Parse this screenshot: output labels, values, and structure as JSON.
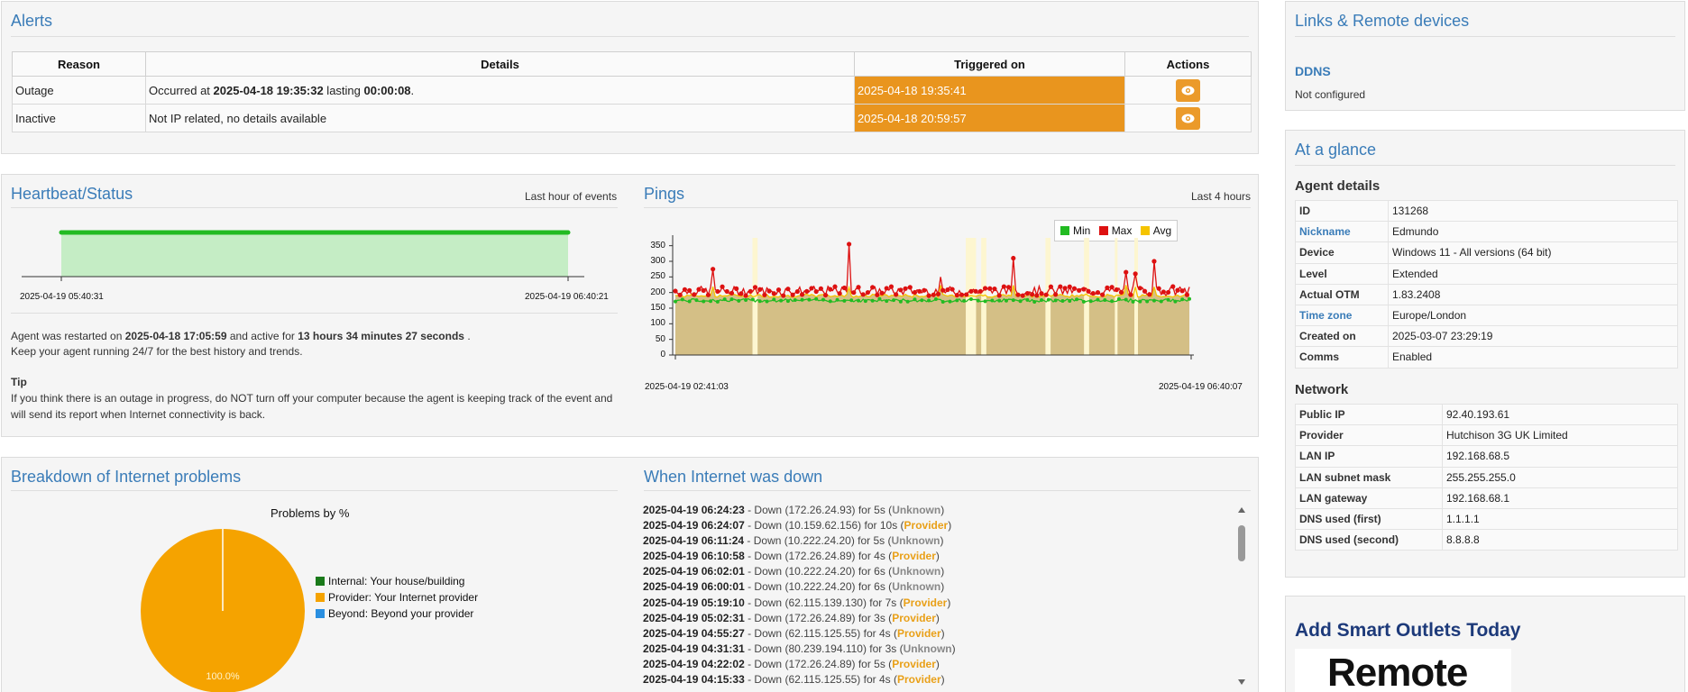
{
  "alerts": {
    "title": "Alerts",
    "columns": [
      "Reason",
      "Details",
      "Triggered on",
      "Actions"
    ],
    "rows": [
      {
        "reason": "Outage",
        "details_prefix": "Occurred at ",
        "details_time": "2025-04-18 19:35:32",
        "details_mid": " lasting ",
        "details_dur": "00:00:08",
        "details_suffix": ".",
        "triggered": "2025-04-18 19:35:41",
        "action_icon": "eye-icon"
      },
      {
        "reason": "Inactive",
        "details_prefix": "Not IP related, no details available",
        "details_time": "",
        "details_mid": "",
        "details_dur": "",
        "details_suffix": "",
        "triggered": "2025-04-18 20:59:57",
        "action_icon": "eye-icon"
      }
    ],
    "trigger_color": "#e9951e"
  },
  "heartbeat": {
    "title": "Heartbeat/Status",
    "range_label": "Last hour of events",
    "x_start": "2025-04-19 05:40:31",
    "x_end": "2025-04-19 06:40:21",
    "status": "up",
    "color": "#22bb22",
    "restart_prefix": "Agent was restarted on ",
    "restart_date": "2025-04-18 17:05:59",
    "restart_mid": " and active for ",
    "restart_duration": "13 hours 34 minutes 27 seconds",
    "restart_suffix": " .",
    "keep_running": "Keep your agent running 24/7 for the best history and trends.",
    "tip_title": "Tip",
    "tip_text": "If you think there is an outage in progress, do NOT turn off your computer because the agent is keeping track of the event and will send its report when Internet connectivity is back."
  },
  "pings": {
    "title": "Pings",
    "range_label": "Last 4 hours",
    "legend": [
      {
        "name": "Min",
        "color": "#22bb22"
      },
      {
        "name": "Max",
        "color": "#dd1111"
      },
      {
        "name": "Avg",
        "color": "#f5c400"
      }
    ],
    "y_ticks": [
      "350",
      "300",
      "250",
      "200",
      "150",
      "100",
      "50",
      "0"
    ],
    "x_start": "2025-04-19 02:41:03",
    "x_end": "2025-04-19 06:40:07"
  },
  "chart_data": [
    {
      "type": "pie",
      "title": "Problems by %",
      "categories": [
        "Internal: Your house/building",
        "Provider: Your Internet provider",
        "Beyond: Beyond your provider"
      ],
      "values": [
        0,
        100,
        0
      ],
      "colors": [
        "#1a7a1a",
        "#f5a300",
        "#2a8fe0"
      ],
      "data_label": "100.0%"
    },
    {
      "type": "line",
      "title": "",
      "xlabel": "",
      "ylabel": "",
      "x_range": [
        "2025-04-19 02:41:03",
        "2025-04-19 06:40:07"
      ],
      "ylim": [
        0,
        375
      ],
      "series": [
        {
          "name": "Min",
          "typical": 175
        },
        {
          "name": "Max",
          "typical": 205,
          "spikes": [
            275,
            355,
            310,
            250,
            260,
            265,
            300
          ]
        },
        {
          "name": "Avg",
          "typical": 190
        }
      ]
    }
  ],
  "breakdown": {
    "title": "Breakdown of Internet problems"
  },
  "down": {
    "title": "When Internet was down",
    "rows": [
      {
        "time": "2025-04-19 06:24:23",
        "text": " - Down (172.26.24.93) for 5s (",
        "cat": "Unknown",
        "kind": "unknown"
      },
      {
        "time": "2025-04-19 06:24:07",
        "text": " - Down (10.159.62.156) for 10s (",
        "cat": "Provider",
        "kind": "provider"
      },
      {
        "time": "2025-04-19 06:11:24",
        "text": " - Down (10.222.24.20) for 5s (",
        "cat": "Unknown",
        "kind": "unknown"
      },
      {
        "time": "2025-04-19 06:10:58",
        "text": " - Down (172.26.24.89) for 4s (",
        "cat": "Provider",
        "kind": "provider"
      },
      {
        "time": "2025-04-19 06:02:01",
        "text": " - Down (10.222.24.20) for 6s (",
        "cat": "Unknown",
        "kind": "unknown"
      },
      {
        "time": "2025-04-19 06:00:01",
        "text": " - Down (10.222.24.20) for 6s (",
        "cat": "Unknown",
        "kind": "unknown"
      },
      {
        "time": "2025-04-19 05:19:10",
        "text": " - Down (62.115.139.130) for 7s (",
        "cat": "Provider",
        "kind": "provider"
      },
      {
        "time": "2025-04-19 05:02:31",
        "text": " - Down (172.26.24.89) for 3s (",
        "cat": "Provider",
        "kind": "provider"
      },
      {
        "time": "2025-04-19 04:55:27",
        "text": " - Down (62.115.125.55) for 4s (",
        "cat": "Provider",
        "kind": "provider"
      },
      {
        "time": "2025-04-19 04:31:31",
        "text": " - Down (80.239.194.110) for 3s (",
        "cat": "Unknown",
        "kind": "unknown"
      },
      {
        "time": "2025-04-19 04:22:02",
        "text": " - Down (172.26.24.89) for 5s (",
        "cat": "Provider",
        "kind": "provider"
      },
      {
        "time": "2025-04-19 04:15:33",
        "text": " - Down (62.115.125.55) for 4s (",
        "cat": "Provider",
        "kind": "provider"
      }
    ]
  },
  "links": {
    "title": "Links & Remote devices",
    "ddns_label": "DDNS",
    "ddns_value": "Not configured"
  },
  "glance": {
    "title": "At a glance",
    "agent_title": "Agent details",
    "agent": [
      {
        "k": "ID",
        "v": "131268",
        "link": false
      },
      {
        "k": "Nickname",
        "v": "Edmundo",
        "link": true
      },
      {
        "k": "Device",
        "v": "Windows 11 - All versions (64 bit)",
        "link": false
      },
      {
        "k": "Level",
        "v": "Extended",
        "link": false
      },
      {
        "k": "Actual OTM",
        "v": "1.83.2408",
        "link": false
      },
      {
        "k": "Time zone",
        "v": "Europe/London",
        "link": true
      },
      {
        "k": "Created on",
        "v": "2025-03-07 23:29:19",
        "link": false
      },
      {
        "k": "Comms",
        "v": "Enabled",
        "link": false
      }
    ],
    "network_title": "Network",
    "network": [
      {
        "k": "Public IP",
        "v": "92.40.193.61"
      },
      {
        "k": "Provider",
        "v": "Hutchison 3G UK Limited"
      },
      {
        "k": "LAN IP",
        "v": "192.168.68.5"
      },
      {
        "k": "LAN subnet mask",
        "v": "255.255.255.0"
      },
      {
        "k": "LAN gateway",
        "v": "192.168.68.1"
      },
      {
        "k": "DNS used (first)",
        "v": "1.1.1.1"
      },
      {
        "k": "DNS used (second)",
        "v": "8.8.8.8"
      }
    ]
  },
  "promo": {
    "title": "Add Smart Outlets Today",
    "image_text": "Remote"
  }
}
